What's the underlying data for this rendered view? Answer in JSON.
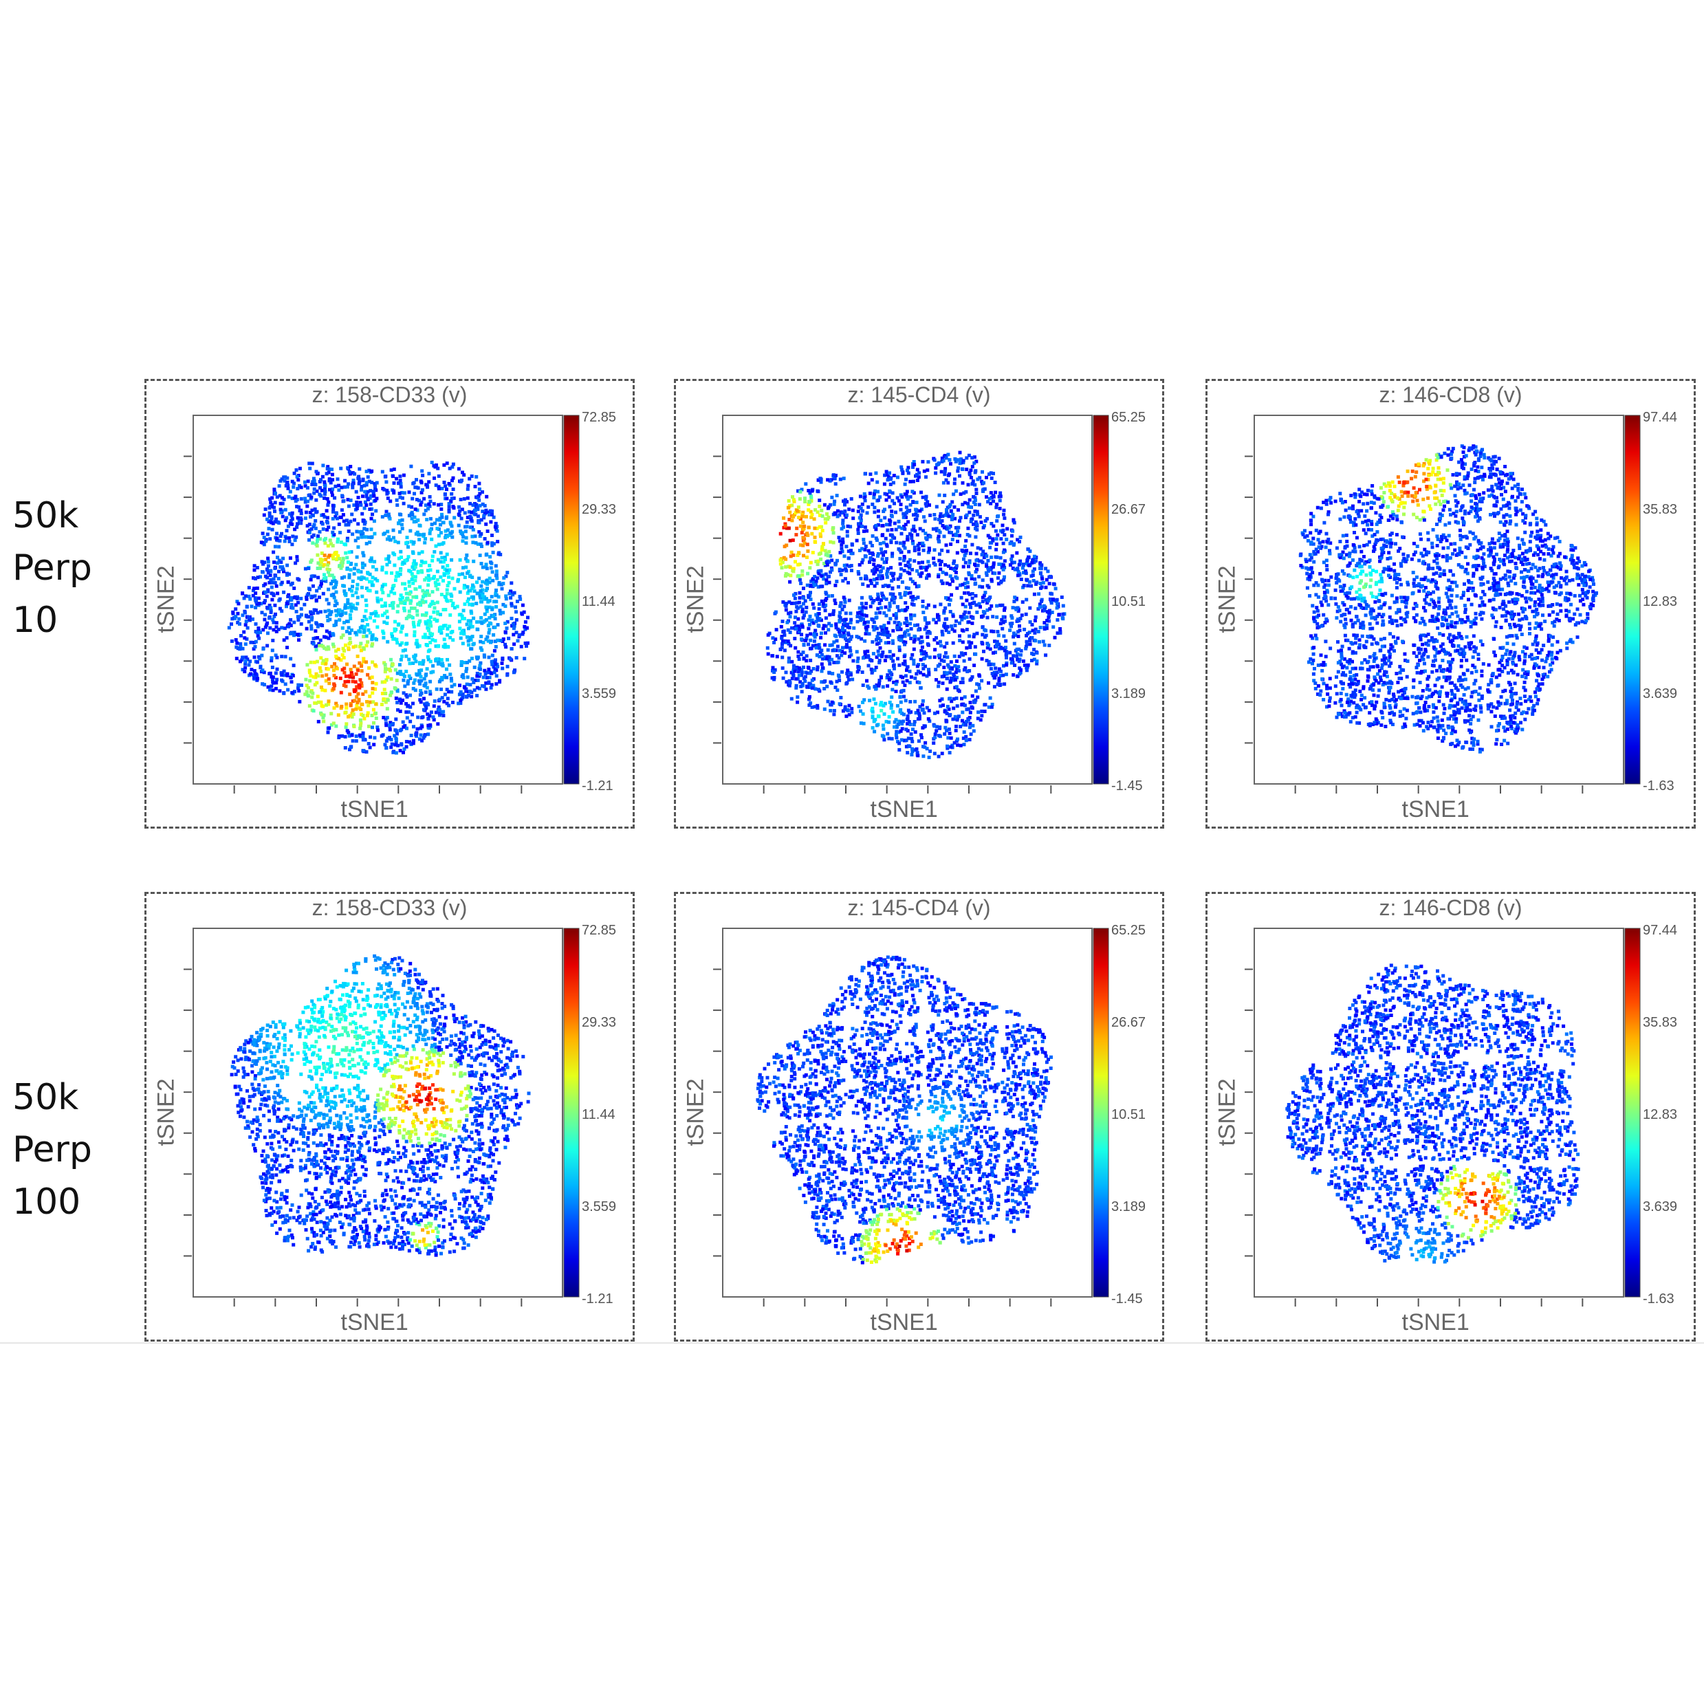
{
  "row_labels": [
    [
      "50k",
      "Perp",
      "10"
    ],
    [
      "50k",
      "Perp",
      "100"
    ]
  ],
  "chart_data": [
    {
      "type": "scatter",
      "title": "z: 158-CD33 (v)",
      "xlabel": "tSNE1",
      "ylabel": "tSNE2",
      "colorbar_ticks": [
        "72.85",
        "29.33",
        "11.44",
        "3.559",
        "-1.21"
      ],
      "perplexity": "10",
      "high_regions": [
        {
          "cx": 0.42,
          "cy": 0.72,
          "r": 0.13,
          "level": 1.0
        },
        {
          "cx": 0.6,
          "cy": 0.5,
          "r": 0.25,
          "level": 0.5
        },
        {
          "cx": 0.36,
          "cy": 0.38,
          "r": 0.06,
          "level": 0.8
        }
      ]
    },
    {
      "type": "scatter",
      "title": "z: 145-CD4 (v)",
      "xlabel": "tSNE1",
      "ylabel": "tSNE2",
      "colorbar_ticks": [
        "65.25",
        "26.67",
        "10.51",
        "3.189",
        "-1.45"
      ],
      "perplexity": "10",
      "high_regions": [
        {
          "cx": 0.18,
          "cy": 0.32,
          "r": 0.12,
          "level": 1.0
        },
        {
          "cx": 0.42,
          "cy": 0.8,
          "r": 0.07,
          "level": 0.45
        }
      ]
    },
    {
      "type": "scatter",
      "title": "z: 146-CD8 (v)",
      "xlabel": "tSNE1",
      "ylabel": "tSNE2",
      "colorbar_ticks": [
        "97.44",
        "35.83",
        "12.83",
        "3.639",
        "-1.63"
      ],
      "perplexity": "10",
      "high_regions": [
        {
          "cx": 0.43,
          "cy": 0.18,
          "r": 0.1,
          "level": 1.0
        },
        {
          "cx": 0.3,
          "cy": 0.45,
          "r": 0.05,
          "level": 0.6
        }
      ]
    },
    {
      "type": "scatter",
      "title": "z: 158-CD33 (v)",
      "xlabel": "tSNE1",
      "ylabel": "tSNE2",
      "colorbar_ticks": [
        "72.85",
        "29.33",
        "11.44",
        "3.559",
        "-1.21"
      ],
      "perplexity": "100",
      "high_regions": [
        {
          "cx": 0.62,
          "cy": 0.45,
          "r": 0.13,
          "level": 1.0
        },
        {
          "cx": 0.4,
          "cy": 0.3,
          "r": 0.25,
          "level": 0.5
        },
        {
          "cx": 0.62,
          "cy": 0.83,
          "r": 0.04,
          "level": 0.9
        }
      ]
    },
    {
      "type": "scatter",
      "title": "z: 145-CD4 (v)",
      "xlabel": "tSNE1",
      "ylabel": "tSNE2",
      "colorbar_ticks": [
        "65.25",
        "26.67",
        "10.51",
        "3.189",
        "-1.45"
      ],
      "perplexity": "100",
      "high_regions": [
        {
          "cx": 0.48,
          "cy": 0.86,
          "r": 0.11,
          "level": 1.0
        },
        {
          "cx": 0.58,
          "cy": 0.52,
          "r": 0.1,
          "level": 0.4
        }
      ]
    },
    {
      "type": "scatter",
      "title": "z: 146-CD8 (v)",
      "xlabel": "tSNE1",
      "ylabel": "tSNE2",
      "colorbar_ticks": [
        "97.44",
        "35.83",
        "12.83",
        "3.639",
        "-1.63"
      ],
      "perplexity": "100",
      "high_regions": [
        {
          "cx": 0.6,
          "cy": 0.73,
          "r": 0.11,
          "level": 1.0
        },
        {
          "cx": 0.45,
          "cy": 0.88,
          "r": 0.12,
          "level": 0.35
        }
      ]
    }
  ]
}
